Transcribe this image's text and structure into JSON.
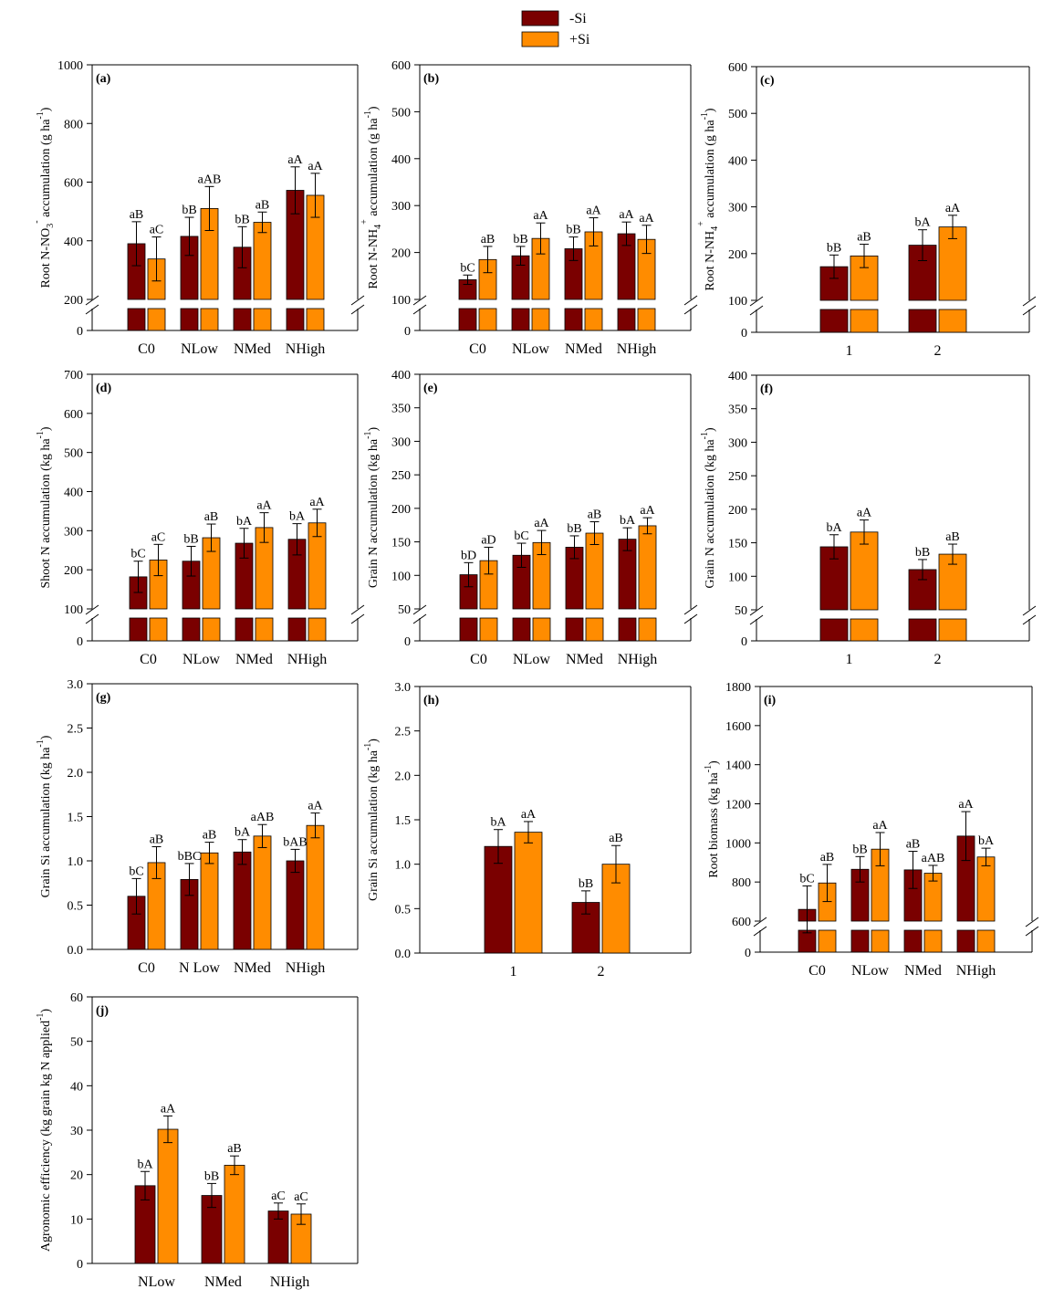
{
  "legend": [
    {
      "name": "-Si",
      "color": "#7a0000"
    },
    {
      "name": "+Si",
      "color": "#ff8c00"
    }
  ],
  "colors": {
    "neg_si": "#7a0000",
    "pos_si": "#ff8c00",
    "frame": "#000000"
  },
  "chart_data": [
    {
      "panel": "(a)",
      "type": "bar",
      "ylabel": "Root N-NO3- accumulation (g ha-1)",
      "ylabel_parts": {
        "main": "Root N-NO",
        "sub": "3",
        "sup1": "-",
        "rest": " accumulation (g ha",
        "sup2": "-1",
        "end": ")"
      },
      "categories": [
        "C0",
        "NLow",
        "NMed",
        "NHigh"
      ],
      "ylim": [
        200,
        1000
      ],
      "yticks": [
        200,
        400,
        600,
        800,
        1000
      ],
      "break": true,
      "grid": false,
      "series": [
        {
          "name": "-Si",
          "values": [
            390,
            415,
            378,
            572
          ],
          "errors": [
            75,
            65,
            70,
            80
          ],
          "labels": [
            "aB",
            "bB",
            "bB",
            "aA"
          ]
        },
        {
          "name": "+Si",
          "values": [
            338,
            510,
            463,
            555
          ],
          "errors": [
            75,
            75,
            35,
            75
          ],
          "labels": [
            "aC",
            "aAB",
            "aB",
            "aA"
          ]
        }
      ]
    },
    {
      "panel": "(b)",
      "type": "bar",
      "ylabel": "Root N-NH4+ accumulation (g ha-1)",
      "ylabel_parts": {
        "main": "Root N-NH",
        "sub": "4",
        "sup1": "+",
        "rest": " accumulation (g ha",
        "sup2": "-1",
        "end": ")"
      },
      "categories": [
        "C0",
        "NLow",
        "NMed",
        "NHigh"
      ],
      "ylim": [
        100,
        600
      ],
      "yticks": [
        100,
        200,
        300,
        400,
        500,
        600
      ],
      "break": true,
      "grid": false,
      "series": [
        {
          "name": "-Si",
          "values": [
            142,
            193,
            208,
            240
          ],
          "errors": [
            10,
            20,
            25,
            25
          ],
          "labels": [
            "bC",
            "bB",
            "bB",
            "aA"
          ]
        },
        {
          "name": "+Si",
          "values": [
            185,
            230,
            244,
            228
          ],
          "errors": [
            28,
            33,
            30,
            30
          ],
          "labels": [
            "aB",
            "aA",
            "aA",
            "aA"
          ]
        }
      ]
    },
    {
      "panel": "(c)",
      "type": "bar",
      "ylabel": "Root N-NH4+ accumulation (g ha-1)",
      "ylabel_parts": {
        "main": "Root N-NH",
        "sub": "4",
        "sup1": "+",
        "rest": " accumulation (g ha",
        "sup2": "-1",
        "end": ")"
      },
      "categories": [
        "1",
        "2"
      ],
      "ylim": [
        100,
        600
      ],
      "yticks": [
        100,
        200,
        300,
        400,
        500,
        600
      ],
      "break": true,
      "grid": false,
      "series": [
        {
          "name": "-Si",
          "values": [
            172,
            218
          ],
          "errors": [
            25,
            33
          ],
          "labels": [
            "bB",
            "bA"
          ]
        },
        {
          "name": "+Si",
          "values": [
            195,
            257
          ],
          "errors": [
            25,
            25
          ],
          "labels": [
            "aB",
            "aA"
          ]
        }
      ]
    },
    {
      "panel": "(d)",
      "type": "bar",
      "ylabel": "Shoot N accumulation (kg ha-1)",
      "ylabel_parts": {
        "main": "Shoot N accumulation (kg ha",
        "sub": "",
        "sup1": "",
        "rest": "",
        "sup2": "-1",
        "end": ")"
      },
      "categories": [
        "C0",
        "NLow",
        "NMed",
        "NHigh"
      ],
      "ylim": [
        100,
        700
      ],
      "yticks": [
        100,
        200,
        300,
        400,
        500,
        600,
        700
      ],
      "break": true,
      "grid": false,
      "series": [
        {
          "name": "-Si",
          "values": [
            182,
            222,
            268,
            278
          ],
          "errors": [
            40,
            38,
            38,
            40
          ],
          "labels": [
            "bC",
            "bB",
            "bA",
            "bA"
          ]
        },
        {
          "name": "+Si",
          "values": [
            225,
            282,
            308,
            320
          ],
          "errors": [
            40,
            35,
            38,
            35
          ],
          "labels": [
            "aC",
            "aB",
            "aA",
            "aA"
          ]
        }
      ]
    },
    {
      "panel": "(e)",
      "type": "bar",
      "ylabel": "Grain N accumulation (kg ha-1)",
      "ylabel_parts": {
        "main": "Grain N accumulation (kg ha",
        "sub": "",
        "sup1": "",
        "rest": "",
        "sup2": "-1",
        "end": ")"
      },
      "categories": [
        "C0",
        "NLow",
        "NMed",
        "NHigh"
      ],
      "ylim": [
        50,
        400
      ],
      "yticks": [
        50,
        100,
        150,
        200,
        250,
        300,
        350,
        400
      ],
      "break": true,
      "grid": false,
      "series": [
        {
          "name": "-Si",
          "values": [
            101,
            130,
            142,
            154
          ],
          "errors": [
            18,
            18,
            17,
            17
          ],
          "labels": [
            "bD",
            "bC",
            "bB",
            "bA"
          ]
        },
        {
          "name": "+Si",
          "values": [
            122,
            149,
            163,
            174
          ],
          "errors": [
            20,
            18,
            17,
            12
          ],
          "labels": [
            "aD",
            "aA",
            "aB",
            "aA"
          ]
        }
      ]
    },
    {
      "panel": "(f)",
      "type": "bar",
      "ylabel": "Grain N accumulation (kg ha-1)",
      "ylabel_parts": {
        "main": "Grain N accumulation (kg ha",
        "sub": "",
        "sup1": "",
        "rest": "",
        "sup2": "-1",
        "end": ")"
      },
      "categories": [
        "1",
        "2"
      ],
      "ylim": [
        50,
        400
      ],
      "yticks": [
        50,
        100,
        150,
        200,
        250,
        300,
        350,
        400
      ],
      "break": true,
      "grid": false,
      "series": [
        {
          "name": "-Si",
          "values": [
            144,
            110
          ],
          "errors": [
            18,
            15
          ],
          "labels": [
            "bA",
            "bB"
          ]
        },
        {
          "name": "+Si",
          "values": [
            166,
            133
          ],
          "errors": [
            18,
            15
          ],
          "labels": [
            "aA",
            "aB"
          ]
        }
      ]
    },
    {
      "panel": "(g)",
      "type": "bar",
      "ylabel": "Grain Si accumulation (kg ha-1)",
      "ylabel_parts": {
        "main": "Grain Si accumulation (kg ha",
        "sub": "",
        "sup1": "",
        "rest": "",
        "sup2": "-1",
        "end": ")"
      },
      "categories": [
        "C0",
        "N Low",
        "NMed",
        "NHigh"
      ],
      "ylim": [
        0,
        3.0
      ],
      "yticks": [
        0.0,
        0.5,
        1.0,
        1.5,
        2.0,
        2.5,
        3.0
      ],
      "break": false,
      "grid": false,
      "series": [
        {
          "name": "-Si",
          "values": [
            0.6,
            0.79,
            1.1,
            1.0
          ],
          "errors": [
            0.2,
            0.18,
            0.14,
            0.13
          ],
          "labels": [
            "bC",
            "bBC",
            "bA",
            "bAB"
          ]
        },
        {
          "name": "+Si",
          "values": [
            0.98,
            1.09,
            1.28,
            1.4
          ],
          "errors": [
            0.18,
            0.12,
            0.13,
            0.14
          ],
          "labels": [
            "aB",
            "aB",
            "aAB",
            "aA"
          ]
        }
      ]
    },
    {
      "panel": "(h)",
      "type": "bar",
      "ylabel": "Grain Si accumulation (kg ha-1)",
      "ylabel_parts": {
        "main": "Grain Si accumulation (kg ha",
        "sub": "",
        "sup1": "",
        "rest": "",
        "sup2": "-1",
        "end": ")"
      },
      "categories": [
        "1",
        "2"
      ],
      "ylim": [
        0,
        3.0
      ],
      "yticks": [
        0.0,
        0.5,
        1.0,
        1.5,
        2.0,
        2.5,
        3.0
      ],
      "break": false,
      "grid": false,
      "series": [
        {
          "name": "-Si",
          "values": [
            1.2,
            0.57
          ],
          "errors": [
            0.19,
            0.13
          ],
          "labels": [
            "bA",
            "bB"
          ]
        },
        {
          "name": "+Si",
          "values": [
            1.36,
            1.0
          ],
          "errors": [
            0.12,
            0.21
          ],
          "labels": [
            "aA",
            "aB"
          ]
        }
      ]
    },
    {
      "panel": "(i)",
      "type": "bar",
      "ylabel": "Root biomass (kg ha-1)",
      "ylabel_parts": {
        "main": "Root biomass (kg ha",
        "sub": "",
        "sup1": "",
        "rest": "",
        "sup2": "-1",
        "end": ")"
      },
      "categories": [
        "C0",
        "NLow",
        "NMed",
        "NHigh"
      ],
      "ylim": [
        600,
        1800
      ],
      "yticks": [
        600,
        800,
        1000,
        1200,
        1400,
        1600,
        1800
      ],
      "break": true,
      "grid": false,
      "series": [
        {
          "name": "-Si",
          "values": [
            660,
            865,
            862,
            1035
          ],
          "errors": [
            120,
            65,
            95,
            125
          ],
          "labels": [
            "bC",
            "bB",
            "aB",
            "aA"
          ]
        },
        {
          "name": "+Si",
          "values": [
            795,
            968,
            845,
            928
          ],
          "errors": [
            95,
            85,
            40,
            45
          ],
          "labels": [
            "aB",
            "aA",
            "aAB",
            "bA"
          ]
        }
      ]
    },
    {
      "panel": "(j)",
      "type": "bar",
      "ylabel": "Agronomic efficiency (kg grain kg N applied-1)",
      "ylabel_parts": {
        "main": "Agronomic efficiency (kg grain kg N applied",
        "sub": "",
        "sup1": "",
        "rest": "",
        "sup2": "-1",
        "end": ")"
      },
      "categories": [
        "NLow",
        "NMed",
        "NHigh"
      ],
      "ylim": [
        0,
        60
      ],
      "yticks": [
        0,
        10,
        20,
        30,
        40,
        50,
        60
      ],
      "break": false,
      "grid": false,
      "series": [
        {
          "name": "-Si",
          "values": [
            17.5,
            15.3,
            11.8
          ],
          "errors": [
            3.2,
            2.7,
            1.8
          ],
          "labels": [
            "bA",
            "bB",
            "aC"
          ]
        },
        {
          "name": "+Si",
          "values": [
            30.2,
            22.1,
            11.1
          ],
          "errors": [
            3.0,
            2.1,
            2.3
          ],
          "labels": [
            "aA",
            "aB",
            "aC"
          ]
        }
      ]
    }
  ]
}
